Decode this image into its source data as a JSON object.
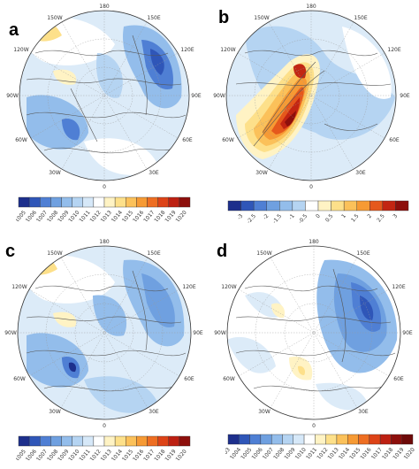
{
  "panels": [
    {
      "label": "a",
      "lon_labels": {
        "top": "180",
        "upper_left": "150W",
        "upper_right": "150E",
        "left_high": "120W",
        "right_high": "120E",
        "left_mid": "90W",
        "right_mid": "90E",
        "left_low": "60W",
        "right_low": "60E",
        "bottom_left": "30W",
        "bottom_right": "30E",
        "bottom": "0"
      },
      "colorbar": {
        "ticks": [
          "1005",
          "1006",
          "1007",
          "1008",
          "1009",
          "1010",
          "1011",
          "1012",
          "1013",
          "1014",
          "1015",
          "1016",
          "1017",
          "1018",
          "1019",
          "1020"
        ],
        "colors": [
          "#1d2f8c",
          "#2f56b8",
          "#4f7fd4",
          "#6fa0e0",
          "#93bdeb",
          "#b5d4f2",
          "#d6e8f8",
          "#ffffff",
          "#fff3c4",
          "#fde08a",
          "#fbc15a",
          "#f69a34",
          "#ee6e22",
          "#dd4317",
          "#bd2012",
          "#8d0f0c"
        ]
      }
    },
    {
      "label": "b",
      "lon_labels": {
        "top": "180",
        "upper_left": "150W",
        "upper_right": "150E",
        "left_high": "120W",
        "right_high": "120E",
        "left_mid": "90W",
        "right_mid": "90E",
        "left_low": "60W",
        "right_low": "60E",
        "bottom_left": "30W",
        "bottom_right": "30E",
        "bottom": "0"
      },
      "colorbar": {
        "ticks": [
          "-3",
          "-2.5",
          "-2",
          "-1.5",
          "-1",
          "-0.5",
          "0",
          "0.5",
          "1",
          "1.5",
          "2",
          "2.5",
          "3"
        ],
        "colors": [
          "#1d2f8c",
          "#2f56b8",
          "#4f7fd4",
          "#6fa0e0",
          "#93bdeb",
          "#b5d4f2",
          "#ffffff",
          "#fff3c4",
          "#fde08a",
          "#fbc15a",
          "#f69a34",
          "#e5581c",
          "#c22512",
          "#8d0f0c"
        ]
      }
    },
    {
      "label": "c",
      "lon_labels": {
        "top": "180",
        "upper_left": "150W",
        "upper_right": "150E",
        "left_high": "120W",
        "right_high": "120E",
        "left_mid": "90W",
        "right_mid": "90E",
        "left_low": "60W",
        "right_low": "60E",
        "bottom_left": "30W",
        "bottom_right": "30E",
        "bottom": "0"
      },
      "colorbar": {
        "ticks": [
          "1005",
          "1006",
          "1007",
          "1008",
          "1009",
          "1010",
          "1011",
          "1012",
          "1013",
          "1014",
          "1015",
          "1016",
          "1017",
          "1018",
          "1019",
          "1020"
        ],
        "colors": [
          "#1d2f8c",
          "#2f56b8",
          "#4f7fd4",
          "#6fa0e0",
          "#93bdeb",
          "#b5d4f2",
          "#d6e8f8",
          "#ffffff",
          "#fff3c4",
          "#fde08a",
          "#fbc15a",
          "#f69a34",
          "#ee6e22",
          "#dd4317",
          "#bd2012",
          "#8d0f0c"
        ]
      }
    },
    {
      "label": "d",
      "lon_labels": {
        "top": "180",
        "upper_left": "150W",
        "upper_right": "150E",
        "left_high": "120W",
        "right_high": "120E",
        "left_mid": "90W",
        "right_mid": "90E",
        "left_low": "60W",
        "right_low": "60E",
        "bottom_left": "30W",
        "bottom_right": "30E",
        "bottom": "0"
      },
      "colorbar": {
        "ticks": [
          "1003",
          "1004",
          "1005",
          "1006",
          "1007",
          "1008",
          "1009",
          "1010",
          "1011",
          "1012",
          "1013",
          "1014",
          "1015",
          "1016",
          "1017",
          "1018",
          "1019",
          "1020"
        ],
        "colors": [
          "#1d2f8c",
          "#2f56b8",
          "#4f7fd4",
          "#6fa0e0",
          "#93bdeb",
          "#b5d4f2",
          "#d6e8f8",
          "#ffffff",
          "#fff3c4",
          "#fde08a",
          "#fbc15a",
          "#f69a34",
          "#ee6e22",
          "#dd4317",
          "#bd2012",
          "#8d0f0c",
          "#6e0a09"
        ]
      }
    }
  ]
}
